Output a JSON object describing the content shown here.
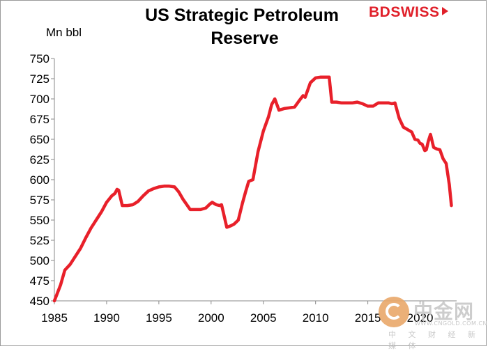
{
  "brand": {
    "part1": "BD",
    "part2": "SWISS"
  },
  "watermark": {
    "name": "中金网",
    "url": "WWW.CNGOLD.COM.CN",
    "sub": "中 文 财 经 新 媒 体"
  },
  "chart_data": {
    "type": "line",
    "title": [
      "US Strategic Petroleum",
      "Reserve"
    ],
    "ylabel": "Mn bbl",
    "xlabel": "",
    "xlim": [
      1985,
      2023.5
    ],
    "ylim": [
      450,
      750
    ],
    "yticks": [
      450,
      475,
      500,
      525,
      550,
      575,
      600,
      625,
      650,
      675,
      700,
      725,
      750
    ],
    "xticks": [
      1985,
      1990,
      1995,
      2000,
      2005,
      2010,
      2015,
      2020
    ],
    "grid": false,
    "legend": "none",
    "colors": {
      "line": "#e8202a"
    },
    "series": [
      {
        "x": [
          1985.0,
          1985.3,
          1985.6,
          1986.0,
          1986.5,
          1987.0,
          1987.5,
          1988.0,
          1988.5,
          1989.0,
          1989.5,
          1990.0,
          1990.5,
          1990.8,
          1991.0,
          1991.15,
          1991.5,
          1992.0,
          1992.5,
          1993.0,
          1993.5,
          1994.0,
          1994.5,
          1995.0,
          1995.5,
          1996.0,
          1996.5,
          1996.9,
          1997.3,
          1998.0,
          1998.6,
          1999.0,
          1999.5,
          1999.9,
          2000.1,
          2000.5,
          2000.8,
          2001.0,
          2001.5,
          2001.9,
          2002.2,
          2002.6,
          2003.0,
          2003.3,
          2003.6,
          2004.0,
          2004.5,
          2005.0,
          2005.5,
          2005.8,
          2006.1,
          2006.5,
          2007.0,
          2007.5,
          2008.0,
          2008.5,
          2008.8,
          2009.0,
          2009.5,
          2010.0,
          2010.5,
          2011.0,
          2011.3,
          2011.55,
          2012.0,
          2012.5,
          2013.0,
          2013.5,
          2014.0,
          2014.5,
          2015.0,
          2015.5,
          2016.0,
          2016.5,
          2017.0,
          2017.3,
          2017.6,
          2018.0,
          2018.4,
          2018.8,
          2019.2,
          2019.5,
          2019.8,
          2020.0,
          2020.2,
          2020.45,
          2020.6,
          2020.8,
          2021.0,
          2021.3,
          2021.6,
          2021.9,
          2022.2,
          2022.5,
          2022.8,
          2023.0
        ],
        "y": [
          450,
          460,
          470,
          488,
          495,
          505,
          515,
          528,
          540,
          550,
          560,
          572,
          580,
          583,
          588,
          587,
          568,
          568,
          569,
          573,
          580,
          586,
          589,
          591,
          592,
          592,
          591,
          585,
          576,
          563,
          563,
          563,
          565,
          570,
          572,
          569,
          568,
          569,
          541,
          543,
          545,
          550,
          571,
          585,
          598,
          600,
          635,
          660,
          678,
          693,
          700,
          686,
          688,
          689,
          690,
          699,
          704,
          702,
          720,
          726,
          727,
          727,
          727,
          696,
          696,
          695,
          695,
          695,
          696,
          694,
          691,
          691,
          695,
          695,
          695,
          694,
          695,
          676,
          665,
          662,
          659,
          650,
          649,
          645,
          644,
          636,
          637,
          648,
          656,
          640,
          638,
          637,
          626,
          620,
          594,
          568
        ]
      }
    ]
  }
}
